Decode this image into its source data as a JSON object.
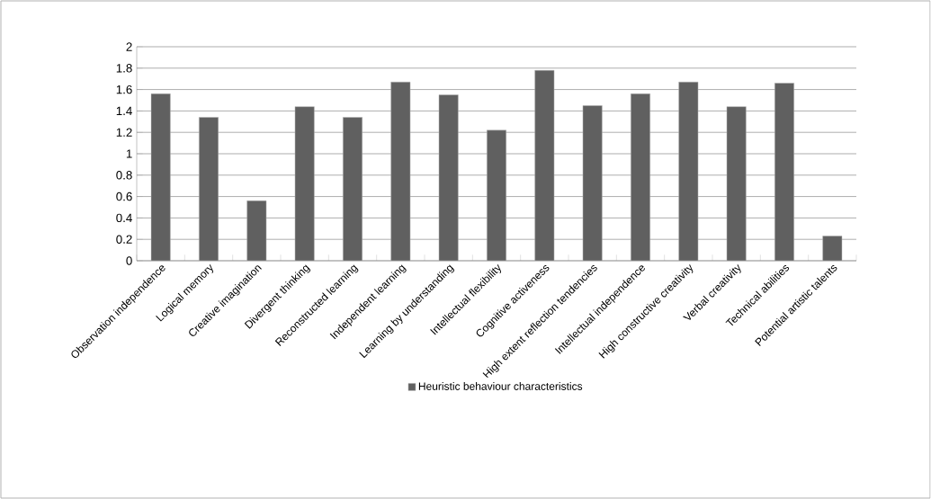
{
  "chart_data": {
    "type": "bar",
    "categories": [
      "Observation independence",
      "Logical memory",
      "Creative imagination",
      "Divergent thinking",
      "Reconstructed learning",
      "Independent learning",
      "Learning by understanding",
      "Intellectual flexibility",
      "Cognitive activeness",
      "High extent reflection tendencies",
      "Intellectual independence",
      "High constructive creativity",
      "Verbal creativity",
      "Technical abilities",
      "Potential artistic talents"
    ],
    "series": [
      {
        "name": "Heuristic behaviour characteristics",
        "color": "#606060",
        "values": [
          1.56,
          1.34,
          0.56,
          1.44,
          1.34,
          1.67,
          1.55,
          1.22,
          1.78,
          1.45,
          1.56,
          1.67,
          1.44,
          1.66,
          0.23
        ]
      }
    ],
    "ylim": [
      0,
      2
    ],
    "yticks": [
      0,
      0.2,
      0.4,
      0.6,
      0.8,
      1,
      1.2,
      1.4,
      1.6,
      1.8,
      2
    ],
    "grid": "y",
    "legend": "bottom"
  }
}
